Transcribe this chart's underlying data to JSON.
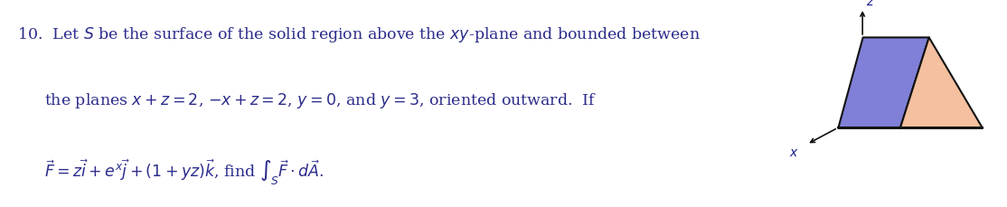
{
  "text_line1": "10.  Let $S$ be the surface of the solid region above the $xy$-plane and bounded between",
  "text_line2": "the planes $x + z = 2$, $-x + z = 2$, $y = 0$, and $y = 3$, oriented outward.  If",
  "text_line3": "$\\vec{F} = z\\vec{i} + e^x\\vec{j} + (1 + yz)\\vec{k}$, find $\\int_S \\vec{F} \\cdot d\\vec{A}$.",
  "text_color": "#2c2c8c",
  "background_color": "#ffffff",
  "fig_width": 11.14,
  "fig_height": 2.3,
  "shape_face_blue": "#8080d8",
  "shape_face_orange": "#f5c0a0",
  "shape_edge_color": "#111111",
  "axis_color": "#111111",
  "label_color": "#1a1a8c"
}
